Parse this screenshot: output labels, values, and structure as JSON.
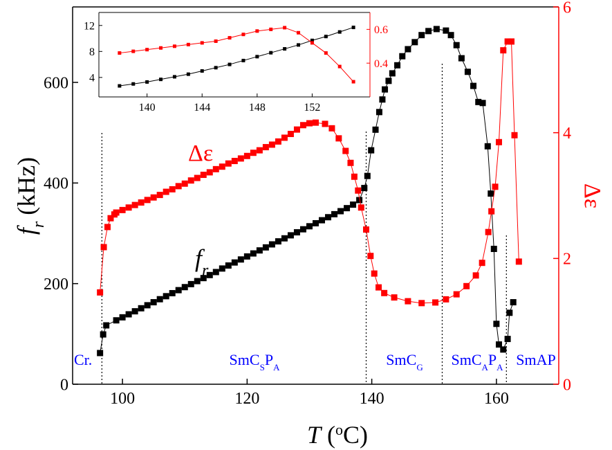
{
  "chart_data": [
    {
      "type": "scatter",
      "xlabel": [
        "T",
        " (",
        "o",
        "C)"
      ],
      "ylabel": [
        "f",
        "r",
        " (kHz)"
      ],
      "y2label": "Δε",
      "xlim": [
        92,
        170
      ],
      "ylim": [
        0,
        750
      ],
      "y2lim": [
        0,
        6
      ],
      "xticks": [
        100,
        120,
        140,
        160
      ],
      "yticks": [
        0,
        200,
        400,
        600
      ],
      "y2ticks": [
        0,
        2,
        4,
        6
      ],
      "series": [
        {
          "color": "#000000",
          "axis": "y",
          "x": [
            96.4,
            96.9,
            97.4,
            99,
            100,
            101,
            102,
            103,
            104,
            105,
            106,
            107,
            108,
            109,
            110,
            111,
            112,
            113,
            114,
            115,
            116,
            117,
            118,
            119,
            120,
            121,
            122,
            123,
            124,
            125,
            126,
            127,
            128,
            129,
            130,
            131,
            132,
            133,
            134,
            135,
            136,
            137,
            138.0,
            138.8,
            139.3,
            139.9,
            140.6,
            141.2,
            141.7,
            142.1,
            142.7,
            143.3,
            144.1,
            144.9,
            145.8,
            146.9,
            148.0,
            149.1,
            150.4,
            151.9,
            152.7,
            153.6,
            154.4,
            155.4,
            156.3,
            157.1,
            157.8,
            158.6,
            159.1,
            159.6,
            160.0,
            160.4,
            161.1,
            161.8,
            162.1,
            162.7
          ],
          "values": [
            62,
            99,
            117,
            127,
            133,
            139,
            145,
            151,
            157,
            163,
            169,
            175,
            181,
            187,
            193,
            199,
            205,
            211,
            217,
            223,
            230,
            236,
            242,
            248,
            254,
            260,
            266,
            272,
            278,
            284,
            290,
            296,
            302,
            308,
            314,
            320,
            326,
            332,
            338,
            344,
            350,
            357,
            366,
            390,
            414,
            465,
            506,
            541,
            566,
            586,
            603,
            618,
            634,
            652,
            666,
            680,
            694,
            702,
            706,
            703,
            694,
            674,
            648,
            621,
            593,
            561,
            559,
            473,
            379,
            269,
            120,
            79,
            69,
            90,
            142,
            163
          ]
        },
        {
          "color": "#ff0000",
          "axis": "y2",
          "x": [
            96.4,
            97.0,
            97.6,
            98.1,
            98.7,
            99,
            100,
            101,
            102,
            103,
            104,
            105,
            106,
            107,
            108,
            109,
            110,
            111,
            112,
            113,
            114,
            115,
            116,
            117,
            118,
            119,
            120,
            121,
            122,
            123,
            124,
            125,
            126,
            127,
            128,
            129,
            130,
            131,
            132.5,
            133.6,
            134.7,
            135.8,
            136.6,
            137.2,
            137.8,
            138.3,
            139.1,
            139.8,
            140.4,
            141.1,
            142.0,
            143.6,
            145.8,
            148.0,
            150.2,
            151.9,
            153.6,
            155.2,
            156.7,
            157.7,
            158.7,
            159.2,
            159.8,
            160.4,
            161.1,
            161.8,
            162.4,
            162.9,
            163.6
          ],
          "values": [
            1.46,
            2.18,
            2.5,
            2.64,
            2.7,
            2.73,
            2.77,
            2.81,
            2.85,
            2.89,
            2.93,
            2.97,
            3.01,
            3.06,
            3.1,
            3.15,
            3.19,
            3.24,
            3.28,
            3.33,
            3.37,
            3.42,
            3.46,
            3.51,
            3.55,
            3.59,
            3.63,
            3.68,
            3.72,
            3.77,
            3.81,
            3.86,
            3.92,
            3.98,
            4.05,
            4.12,
            4.15,
            4.16,
            4.14,
            4.07,
            3.91,
            3.71,
            3.52,
            3.3,
            3.08,
            2.81,
            2.46,
            2.04,
            1.76,
            1.54,
            1.45,
            1.38,
            1.32,
            1.29,
            1.3,
            1.35,
            1.43,
            1.56,
            1.73,
            1.93,
            2.42,
            2.75,
            3.14,
            3.85,
            5.31,
            5.45,
            5.45,
            3.96,
            1.95
          ]
        }
      ],
      "phase_boundaries": [
        96.7,
        139.1,
        151.3,
        161.6
      ],
      "phases": [
        [
          "Cr."
        ],
        [
          "SmC",
          "S",
          "P",
          "A"
        ],
        [
          "SmC",
          "G"
        ],
        [
          "SmC",
          "A",
          "P",
          "A"
        ],
        [
          "SmAP"
        ]
      ],
      "phase_color": "#0000ff",
      "curve_labels": [
        {
          "text": [
            "Δε"
          ],
          "color": "#ff0000"
        },
        {
          "text": [
            "f",
            "r"
          ],
          "color": "#000000"
        }
      ]
    },
    {
      "type": "scatter",
      "xlim": [
        136.5,
        156.2
      ],
      "ylim": [
        1,
        14
      ],
      "y2lim": [
        0.2,
        0.7
      ],
      "xticks": [
        140,
        144,
        148,
        152
      ],
      "yticks": [
        4,
        8,
        12
      ],
      "y2ticks": [
        0.4,
        0.6
      ],
      "series": [
        {
          "color": "#000000",
          "axis": "y",
          "x": [
            138,
            139,
            140,
            141,
            142,
            143,
            144,
            145,
            146,
            147,
            148,
            149,
            150,
            151,
            152,
            153,
            154,
            155
          ],
          "values": [
            2.7,
            3.0,
            3.3,
            3.7,
            4.1,
            4.5,
            5.0,
            5.5,
            6.0,
            6.6,
            7.2,
            7.8,
            8.4,
            9.0,
            9.7,
            10.3,
            11.0,
            11.7
          ]
        },
        {
          "color": "#ff0000",
          "axis": "y2",
          "x": [
            138,
            139,
            140,
            141,
            142,
            143,
            144,
            145,
            146,
            147,
            148,
            149,
            150,
            151,
            152,
            153,
            154,
            155
          ],
          "values": [
            0.46,
            0.47,
            0.48,
            0.49,
            0.5,
            0.51,
            0.52,
            0.53,
            0.55,
            0.57,
            0.59,
            0.6,
            0.61,
            0.58,
            0.52,
            0.46,
            0.38,
            0.29
          ]
        }
      ]
    }
  ]
}
